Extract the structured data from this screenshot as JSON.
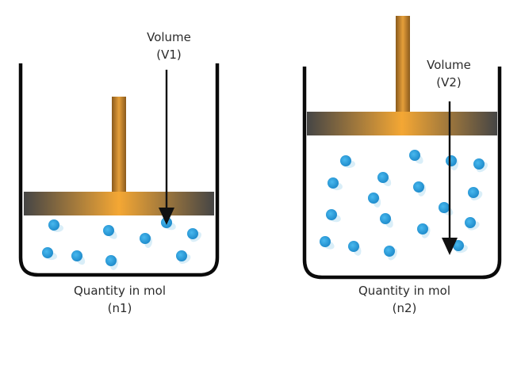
{
  "containers": [
    {
      "volume_label": "Volume",
      "volume_symbol": "(V1)",
      "quantity_label": "Quantity in mol",
      "quantity_symbol": "(n1)",
      "particle_count": 9
    },
    {
      "volume_label": "Volume",
      "volume_symbol": "(V2)",
      "quantity_label": "Quantity in mol",
      "quantity_symbol": "(n2)",
      "particle_count": 18
    }
  ],
  "colors": {
    "container_wall": "#0a0a0a",
    "piston_dark": "#4a4a4a",
    "piston_gold": "#f0a533",
    "rod": "#c8862a",
    "particle": "#2a9fd8",
    "arrow": "#111111"
  }
}
